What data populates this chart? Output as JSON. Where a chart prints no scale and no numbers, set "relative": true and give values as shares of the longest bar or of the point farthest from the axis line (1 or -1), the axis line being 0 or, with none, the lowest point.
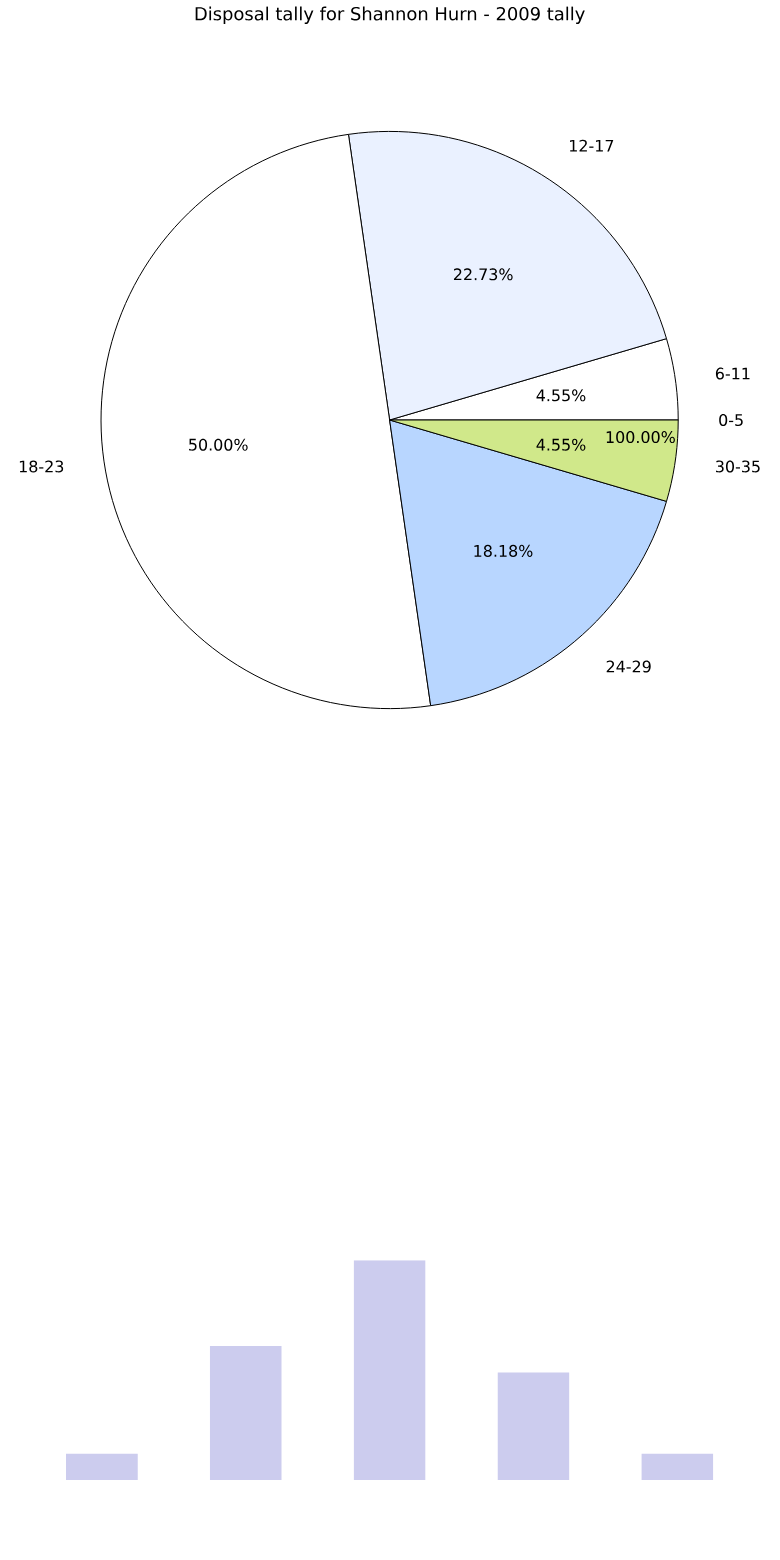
{
  "chart_data": [
    {
      "type": "pie",
      "title": "Disposal tally for Shannon Hurn - 2009 tally",
      "categories": [
        "0-5",
        "6-11",
        "12-17",
        "18-23",
        "24-29",
        "30-35"
      ],
      "values": [
        0,
        4.55,
        22.73,
        50.0,
        18.18,
        4.55
      ],
      "value_labels": [
        null,
        "4.55%",
        "22.73%",
        "50.00%",
        "18.18%",
        "4.55%"
      ],
      "colors": [
        "#c4d9ff",
        "#ffffff",
        "#eaf1ff",
        "#ffffff",
        "#b8d6ff",
        "#d0e88a"
      ],
      "annotations": [
        "100.00%"
      ]
    },
    {
      "type": "bar",
      "relative": true,
      "categories": [
        null,
        null,
        null,
        null,
        null
      ],
      "values": [
        0.12,
        0.61,
        1,
        0.49,
        0.12
      ],
      "color": "#ccccee"
    }
  ]
}
